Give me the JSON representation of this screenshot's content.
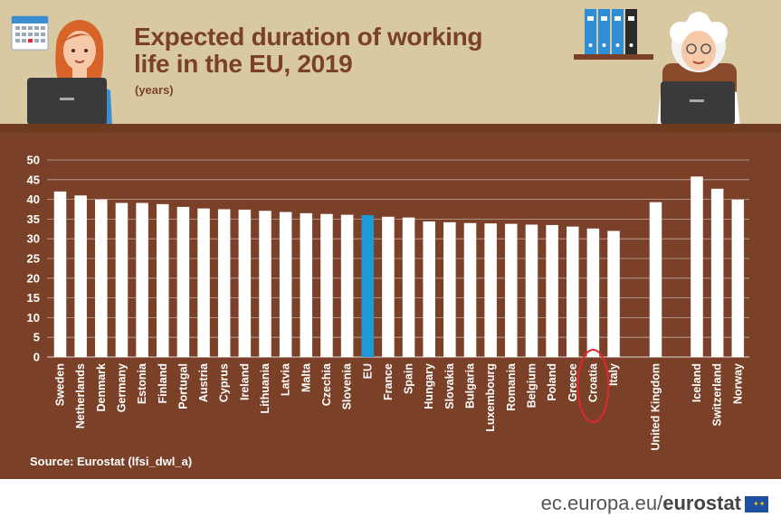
{
  "header": {
    "title": "Expected duration of working life in the EU, 2019",
    "subtitle": "(years)"
  },
  "source": "Source: Eurostat (lfsi_dwl_a)",
  "footer": {
    "domain": "ec.europa.eu/",
    "brand": "eurostat"
  },
  "colors": {
    "bar": "#ffffff",
    "highlight_bar": "#1e9ad6",
    "board": "#7a4128",
    "header_bg": "#d8c9a3",
    "circle": "#e3262e"
  },
  "icons": [
    "calendar-icon",
    "woman-with-laptop-icon",
    "binders-shelf-icon",
    "grandmother-with-laptop-icon",
    "eu-flag-icon"
  ],
  "chart_data": {
    "type": "bar",
    "title": "Expected duration of working life in the EU, 2019",
    "subtitle": "(years)",
    "xlabel": "",
    "ylabel": "",
    "ylim": [
      0,
      50
    ],
    "yticks": [
      0,
      5,
      10,
      15,
      20,
      25,
      30,
      35,
      40,
      45,
      50
    ],
    "grid": true,
    "highlight": "EU",
    "circled": "Croatia",
    "categories": [
      "Sweden",
      "Netherlands",
      "Denmark",
      "Germany",
      "Estonia",
      "Finland",
      "Portugal",
      "Austria",
      "Cyprus",
      "Ireland",
      "Lithuania",
      "Latvia",
      "Malta",
      "Czechia",
      "Slovenia",
      "EU",
      "France",
      "Spain",
      "Hungary",
      "Slovakia",
      "Bulgaria",
      "Luxembourg",
      "Romania",
      "Belgium",
      "Poland",
      "Greece",
      "Croatia",
      "Italy",
      "United Kingdom",
      "Iceland",
      "Switzerland",
      "Norway"
    ],
    "values": [
      42.0,
      41.0,
      40.0,
      39.1,
      39.1,
      38.8,
      38.1,
      37.7,
      37.5,
      37.4,
      37.1,
      36.8,
      36.5,
      36.3,
      36.1,
      36.0,
      35.6,
      35.4,
      34.4,
      34.2,
      34.0,
      33.9,
      33.8,
      33.6,
      33.5,
      33.1,
      32.6,
      32.0,
      39.3,
      45.8,
      42.7,
      39.9
    ]
  }
}
